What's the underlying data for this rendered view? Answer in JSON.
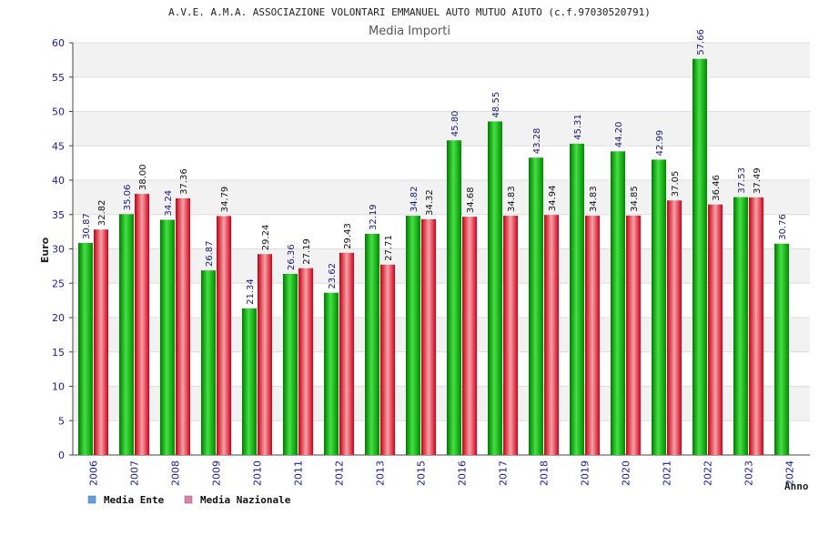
{
  "chart_data": {
    "type": "bar",
    "title": "A.V.E. A.M.A. ASSOCIAZIONE VOLONTARI EMMANUEL AUTO MUTUO AIUTO (c.f.97030520791)",
    "subtitle": "Media Importi",
    "xlabel": "Anno",
    "ylabel": "Euro",
    "ylim": [
      0,
      60
    ],
    "ytick_step": 5,
    "grid": true,
    "legend_position": "bottom-left",
    "categories": [
      "2006",
      "2007",
      "2008",
      "2009",
      "2010",
      "2011",
      "2012",
      "2013",
      "2015",
      "2016",
      "2017",
      "2018",
      "2019",
      "2020",
      "2021",
      "2022",
      "2023",
      "2024"
    ],
    "series": [
      {
        "name": "Media Ente",
        "color": "#1aa81a",
        "legend_color": "#5aa0e6",
        "values": [
          30.87,
          35.06,
          34.24,
          26.87,
          21.34,
          26.36,
          23.62,
          32.19,
          34.82,
          45.8,
          48.55,
          43.28,
          45.31,
          44.2,
          42.99,
          57.66,
          37.53,
          30.76
        ],
        "labels": [
          "30.87",
          "35.06",
          "34.24",
          "26.87",
          "21.34",
          "26.36",
          "23.62",
          "32.19",
          "34.82",
          "45.80",
          "48.55",
          "43.28",
          "45.31",
          "44.20",
          "42.99",
          "57.66",
          "37.53",
          "30.76"
        ]
      },
      {
        "name": "Media Nazionale",
        "color": "#e02030",
        "legend_color": "#e080b0",
        "values": [
          32.82,
          38.0,
          37.36,
          34.79,
          29.24,
          27.19,
          29.43,
          27.71,
          34.32,
          34.68,
          34.83,
          34.94,
          34.83,
          34.85,
          37.05,
          36.46,
          37.49,
          null
        ],
        "labels": [
          "32.82",
          "38.00",
          "37.36",
          "34.79",
          "29.24",
          "27.19",
          "29.43",
          "27.71",
          "34.32",
          "34.68",
          "34.83",
          "34.94",
          "34.83",
          "34.85",
          "37.05",
          "36.46",
          "37.49",
          ""
        ]
      }
    ]
  }
}
